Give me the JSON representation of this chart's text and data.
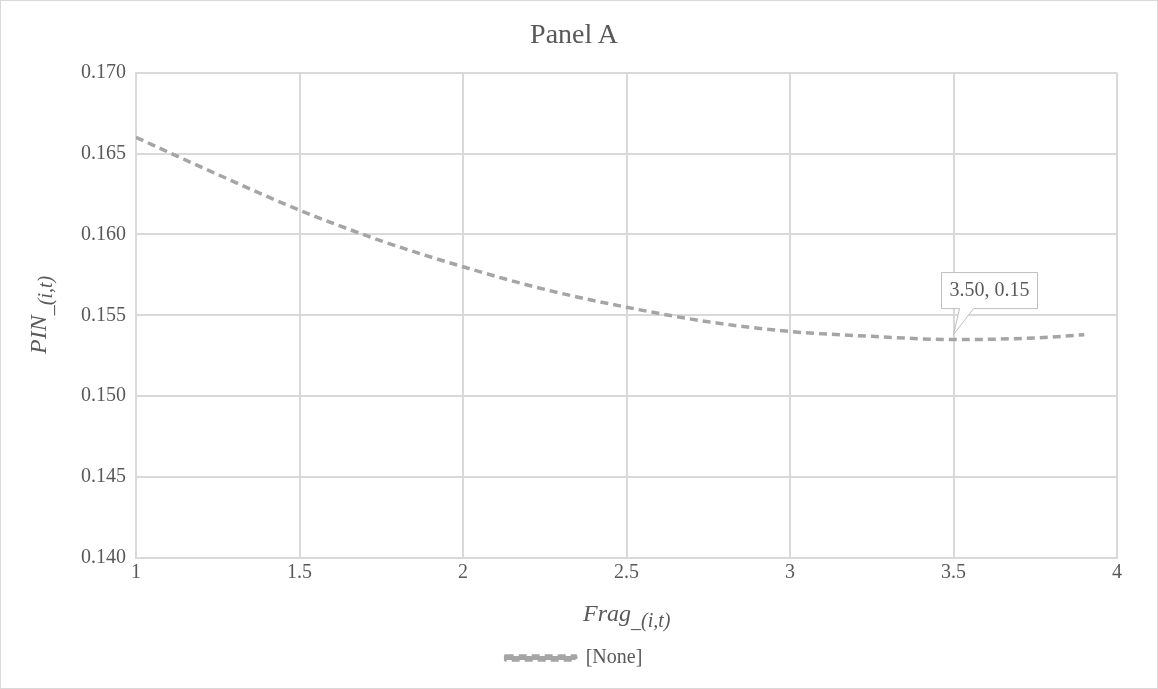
{
  "chart_data": {
    "type": "line",
    "title": "Panel A",
    "xlabel": "Frag$_{_(i,t)}$",
    "ylabel": "PIN$_{_(i,t)}$",
    "x": [
      1,
      1.25,
      1.5,
      1.75,
      2,
      2.25,
      2.5,
      2.75,
      3,
      3.25,
      3.5,
      3.75,
      3.9
    ],
    "series": [
      {
        "name": "[None]",
        "color": "#a5a5a5",
        "values": [
          0.166,
          0.1637,
          0.1615,
          0.1596,
          0.158,
          0.1566,
          0.1555,
          0.1546,
          0.154,
          0.1537,
          0.1535,
          0.1536,
          0.1538
        ]
      }
    ],
    "xlim": [
      1,
      4
    ],
    "xticks": [
      1,
      1.5,
      2,
      2.5,
      3,
      3.5,
      4
    ],
    "ylim": [
      0.14,
      0.17
    ],
    "yticks": [
      {
        "value": 0.14,
        "label": "0.140"
      },
      {
        "value": 0.145,
        "label": "0.145"
      },
      {
        "value": 0.15,
        "label": "0.150"
      },
      {
        "value": 0.155,
        "label": "0.155"
      },
      {
        "value": 0.16,
        "label": "0.160"
      },
      {
        "value": 0.165,
        "label": "0.165"
      },
      {
        "value": 0.17,
        "label": "0.170"
      }
    ],
    "annotations": [
      {
        "text": "3.50, 0.15",
        "x": 3.5,
        "y": 0.1535
      }
    ],
    "grid": true,
    "legend": "bottom",
    "marker": "none",
    "line_style": "dashed"
  }
}
